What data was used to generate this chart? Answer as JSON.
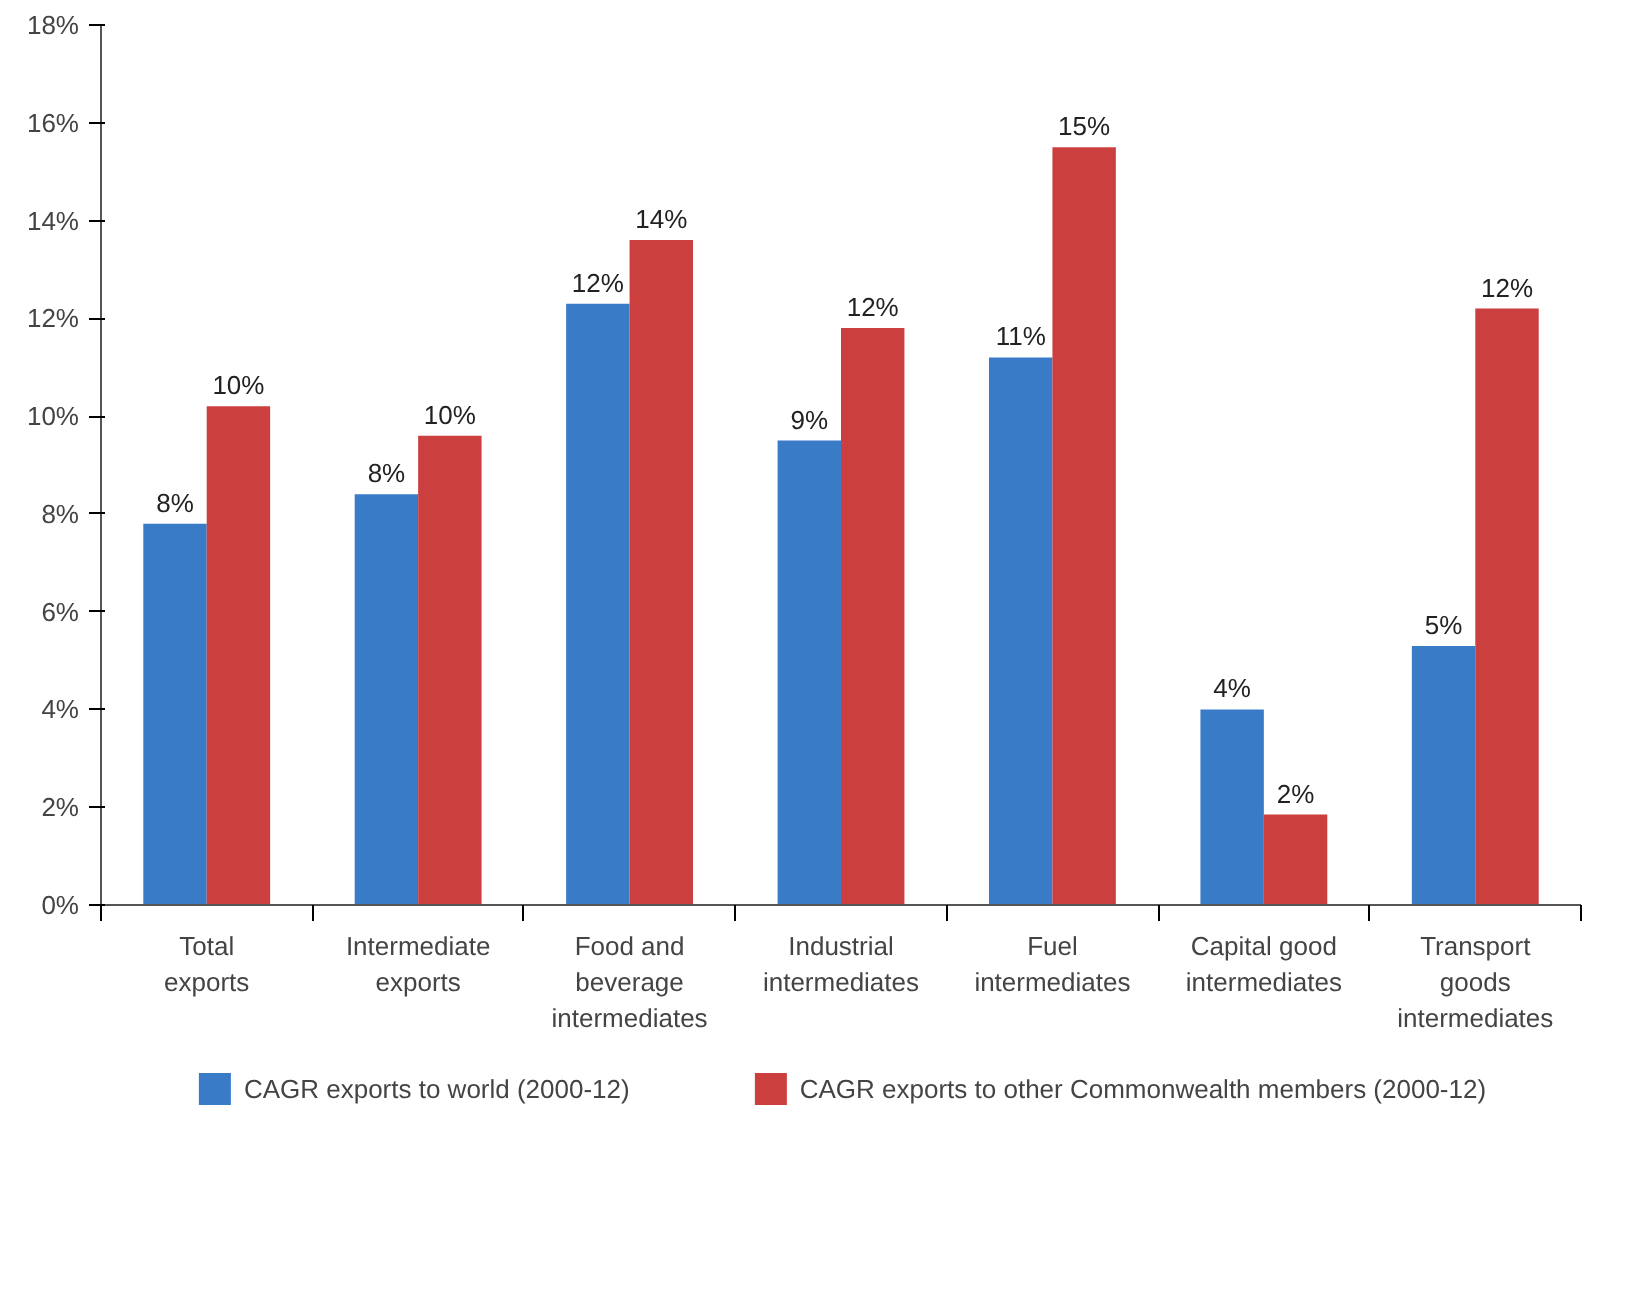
{
  "chart_data": {
    "type": "bar",
    "categories": [
      "Total exports",
      "Intermediate exports",
      "Food and beverage intermediates",
      "Industrial intermediates",
      "Fuel intermediates",
      "Capital good intermediates",
      "Transport goods intermediates"
    ],
    "series": [
      {
        "name": "CAGR exports to world (2000-12)",
        "color": "#3a7bc8",
        "values": [
          7.8,
          8.4,
          12.3,
          9.5,
          11.2,
          4.0,
          5.3
        ],
        "value_labels": [
          "8%",
          "8%",
          "12%",
          "9%",
          "11%",
          "4%",
          "5%"
        ]
      },
      {
        "name": "CAGR exports to other Commonwealth members (2000-12)",
        "color": "#cc3f3f",
        "values": [
          10.2,
          9.6,
          13.6,
          11.8,
          15.5,
          1.85,
          12.2
        ],
        "value_labels": [
          "10%",
          "10%",
          "14%",
          "12%",
          "15%",
          "2%",
          "12%"
        ]
      }
    ],
    "ylim": [
      0,
      18
    ],
    "yticks": [
      {
        "value": 0,
        "label": "0%"
      },
      {
        "value": 2,
        "label": "2%"
      },
      {
        "value": 4,
        "label": "4%"
      },
      {
        "value": 6,
        "label": "6%"
      },
      {
        "value": 8,
        "label": "8%"
      },
      {
        "value": 10,
        "label": "10%"
      },
      {
        "value": 12,
        "label": "12%"
      },
      {
        "value": 14,
        "label": "14%"
      },
      {
        "value": 16,
        "label": "16%"
      },
      {
        "value": 18,
        "label": "18%"
      }
    ],
    "grid": false,
    "legend": "bottom"
  }
}
